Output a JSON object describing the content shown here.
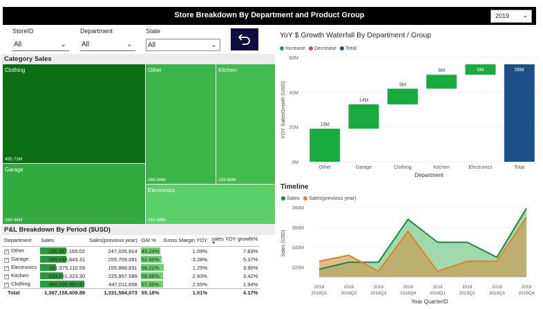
{
  "header": {
    "title": "Store Breakdown By Department and Product Group",
    "year": "2019"
  },
  "slicers": [
    {
      "label": "StoreID",
      "value": "All"
    },
    {
      "label": "Department",
      "value": "All"
    },
    {
      "label": "State",
      "value": "All"
    }
  ],
  "treemap": {
    "title": "Category Sales",
    "tiles": [
      {
        "label": "Clothing",
        "value": "455.71M"
      },
      {
        "label": "Garage",
        "value": "269.44M"
      },
      {
        "label": "Other",
        "value": "266.36M"
      },
      {
        "label": "Kitchen",
        "value": "233.68M"
      },
      {
        "label": "Electronics",
        "value": "161.98M"
      }
    ]
  },
  "pl_table": {
    "title": "P&L Breakdown By Period ($USD)",
    "columns": [
      "Department",
      "Sales",
      "Sales(previous year)",
      "GM %",
      "Gross Margin YOY",
      "sales YOY growth%"
    ],
    "rows": [
      {
        "dept": "Other",
        "sales": "266,357,165.02",
        "prev": "247,026,914",
        "gm": "49.24%",
        "gmyoy": "1.09%",
        "yoy": "7.83%",
        "sales_frac": 0.584,
        "gm_frac": 0.864
      },
      {
        "dept": "Garage",
        "sales": "269,438,843.31",
        "prev": "255,709,081",
        "gm": "52.50%",
        "gmyoy": "-3.28%",
        "yoy": "5.37%",
        "sales_frac": 0.591,
        "gm_frac": 0.921
      },
      {
        "dept": "Electronics",
        "sales": "161,975,110.59",
        "prev": "155,888,831",
        "gm": "59.22%",
        "gmyoy": "1.25%",
        "yoy": "3.90%",
        "sales_frac": 0.355,
        "gm_frac": 1.0
      },
      {
        "dept": "Kitchen",
        "sales": "233,681,323.30",
        "prev": "225,957,589",
        "gm": "58.68%",
        "gmyoy": "2.93%",
        "yoy": "3.42%",
        "sales_frac": 0.513,
        "gm_frac": 0.99
      },
      {
        "dept": "Clothing",
        "sales": "455,705,967.67",
        "prev": "447,011,658",
        "gm": "57.00%",
        "gmyoy": "2.55%",
        "yoy": "1.94%",
        "sales_frac": 1.0,
        "gm_frac": 0.962
      }
    ],
    "total": {
      "dept": "Total",
      "sales": "1,387,158,409.89",
      "prev": "1,331,594,073",
      "gm": "55.18%",
      "gmyoy": "1.01%",
      "yoy": "4.17%"
    }
  },
  "chart_data": [
    {
      "type": "bar",
      "title": "YoY $ Growth Waterfall By Department / Group",
      "legend": [
        "Increase",
        "Decrease",
        "Total"
      ],
      "xlabel": "Department",
      "ylabel": "YOY SalesGrowth (USD)",
      "ylim": [
        0,
        60
      ],
      "yticks": [
        "0M",
        "20M",
        "40M",
        "60M"
      ],
      "categories": [
        "Other",
        "Garage",
        "Clothing",
        "Kitchen",
        "Electronics",
        "Total"
      ],
      "values": [
        19,
        14,
        9,
        8,
        6,
        56
      ],
      "labels": [
        "19M",
        "14M",
        "9M",
        "8M",
        "6M",
        "56M"
      ],
      "kinds": [
        "increase",
        "increase",
        "increase",
        "increase",
        "increase",
        "total"
      ],
      "colors": {
        "increase": "#1aab40",
        "decrease": "#d64550",
        "total": "#1a4f8a"
      }
    },
    {
      "type": "area",
      "title": "Timeline",
      "xlabel": "Year QuarterID",
      "ylabel": "Sales (USD)",
      "ylim": [
        310,
        380
      ],
      "yticks": [
        "320M",
        "340M",
        "360M",
        "380M"
      ],
      "categories": [
        "2018 2018Q1",
        "2018 2018Q2",
        "2018 2018Q3",
        "2018 2018Q4",
        "2019 2019Q1",
        "2019 2019Q2",
        "2019 2019Q3",
        "2019 2019Q4"
      ],
      "series": [
        {
          "name": "Sales",
          "color": "#1a8a3a",
          "values": [
            318,
            325,
            325,
            368,
            345,
            345,
            330,
            379
          ]
        },
        {
          "name": "Sales(previous year)",
          "color": "#e0802a",
          "values": [
            326,
            332,
            316,
            356,
            316,
            326,
            326,
            370
          ]
        }
      ]
    }
  ]
}
